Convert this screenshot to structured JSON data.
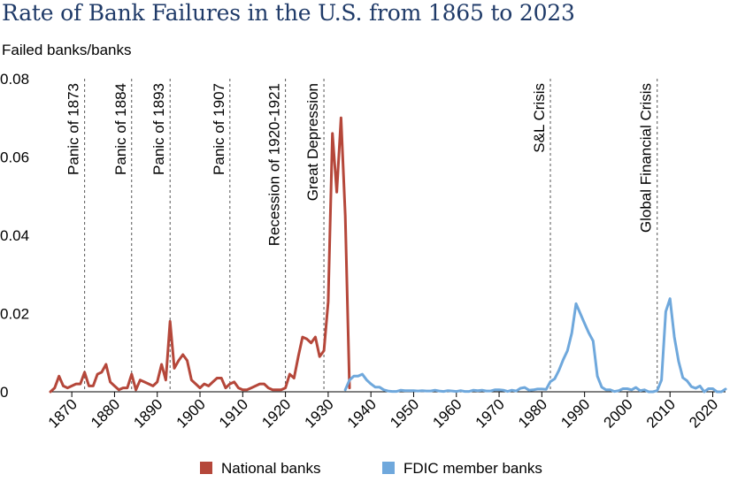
{
  "chart_data": {
    "type": "line",
    "title": "Rate of Bank Failures in the U.S. from 1865 to 2023",
    "ylabel": "Failed banks/banks",
    "xlim": [
      1865,
      2023
    ],
    "ylim": [
      0,
      0.08
    ],
    "x_ticks": [
      1870,
      1880,
      1890,
      1900,
      1910,
      1920,
      1930,
      1940,
      1950,
      1960,
      1970,
      1980,
      1990,
      2000,
      2010,
      2020
    ],
    "y_ticks": [
      0,
      0.02,
      0.04,
      0.06,
      0.08
    ],
    "y_tick_labels": [
      "0",
      "0.02",
      "0.04",
      "0.06",
      "0.08"
    ],
    "grid": false,
    "legend_position": "bottom-center",
    "events": [
      {
        "year": 1873,
        "label": "Panic of 1873"
      },
      {
        "year": 1884,
        "label": "Panic of 1884"
      },
      {
        "year": 1893,
        "label": "Panic of 1893"
      },
      {
        "year": 1907,
        "label": "Panic of 1907"
      },
      {
        "year": 1920,
        "label": "Recession of 1920-1921"
      },
      {
        "year": 1929,
        "label": "Great Depression"
      },
      {
        "year": 1982,
        "label": "S&L Crisis"
      },
      {
        "year": 2007,
        "label": "Global Financial Crisis"
      }
    ],
    "series": [
      {
        "name": "National banks",
        "color": "#b5473a",
        "points": [
          [
            1865,
            0.0
          ],
          [
            1866,
            0.001
          ],
          [
            1867,
            0.004
          ],
          [
            1868,
            0.0015
          ],
          [
            1869,
            0.001
          ],
          [
            1870,
            0.0015
          ],
          [
            1871,
            0.002
          ],
          [
            1872,
            0.002
          ],
          [
            1873,
            0.005
          ],
          [
            1874,
            0.0015
          ],
          [
            1875,
            0.0015
          ],
          [
            1876,
            0.0045
          ],
          [
            1877,
            0.005
          ],
          [
            1878,
            0.007
          ],
          [
            1879,
            0.0025
          ],
          [
            1880,
            0.0015
          ],
          [
            1881,
            0.0005
          ],
          [
            1882,
            0.001
          ],
          [
            1883,
            0.001
          ],
          [
            1884,
            0.0045
          ],
          [
            1885,
            0.0005
          ],
          [
            1886,
            0.003
          ],
          [
            1887,
            0.0025
          ],
          [
            1888,
            0.002
          ],
          [
            1889,
            0.0015
          ],
          [
            1890,
            0.0025
          ],
          [
            1891,
            0.007
          ],
          [
            1892,
            0.003
          ],
          [
            1893,
            0.018
          ],
          [
            1894,
            0.006
          ],
          [
            1895,
            0.008
          ],
          [
            1896,
            0.0095
          ],
          [
            1897,
            0.008
          ],
          [
            1898,
            0.003
          ],
          [
            1899,
            0.002
          ],
          [
            1900,
            0.001
          ],
          [
            1901,
            0.002
          ],
          [
            1902,
            0.0015
          ],
          [
            1903,
            0.0025
          ],
          [
            1904,
            0.0035
          ],
          [
            1905,
            0.0035
          ],
          [
            1906,
            0.001
          ],
          [
            1907,
            0.002
          ],
          [
            1908,
            0.0025
          ],
          [
            1909,
            0.001
          ],
          [
            1910,
            0.0005
          ],
          [
            1911,
            0.0005
          ],
          [
            1912,
            0.001
          ],
          [
            1913,
            0.0015
          ],
          [
            1914,
            0.002
          ],
          [
            1915,
            0.002
          ],
          [
            1916,
            0.001
          ],
          [
            1917,
            0.0005
          ],
          [
            1918,
            0.0005
          ],
          [
            1919,
            0.0005
          ],
          [
            1920,
            0.001
          ],
          [
            1921,
            0.0045
          ],
          [
            1922,
            0.0035
          ],
          [
            1923,
            0.009
          ],
          [
            1924,
            0.014
          ],
          [
            1925,
            0.0135
          ],
          [
            1926,
            0.0125
          ],
          [
            1927,
            0.014
          ],
          [
            1928,
            0.009
          ],
          [
            1929,
            0.0105
          ],
          [
            1930,
            0.023
          ],
          [
            1931,
            0.066
          ],
          [
            1932,
            0.051
          ],
          [
            1933,
            0.07
          ],
          [
            1934,
            0.045
          ],
          [
            1935,
            0.001
          ]
        ]
      },
      {
        "name": "FDIC member banks",
        "color": "#6fa8dc",
        "points": [
          [
            1934,
            0.0005
          ],
          [
            1935,
            0.003
          ],
          [
            1936,
            0.004
          ],
          [
            1937,
            0.004
          ],
          [
            1938,
            0.0045
          ],
          [
            1939,
            0.003
          ],
          [
            1940,
            0.002
          ],
          [
            1941,
            0.0012
          ],
          [
            1942,
            0.0012
          ],
          [
            1943,
            0.0005
          ],
          [
            1944,
            0.0002
          ],
          [
            1945,
            0.0001
          ],
          [
            1946,
            0.0001
          ],
          [
            1947,
            0.0004
          ],
          [
            1948,
            0.0003
          ],
          [
            1949,
            0.0003
          ],
          [
            1950,
            0.0003
          ],
          [
            1951,
            0.0002
          ],
          [
            1952,
            0.0003
          ],
          [
            1953,
            0.0002
          ],
          [
            1954,
            0.0002
          ],
          [
            1955,
            0.0004
          ],
          [
            1956,
            0.0002
          ],
          [
            1957,
            0.0001
          ],
          [
            1958,
            0.0003
          ],
          [
            1959,
            0.0002
          ],
          [
            1960,
            0.0001
          ],
          [
            1961,
            0.0003
          ],
          [
            1962,
            0.0001
          ],
          [
            1963,
            0.0001
          ],
          [
            1964,
            0.0004
          ],
          [
            1965,
            0.0003
          ],
          [
            1966,
            0.0004
          ],
          [
            1967,
            0.0002
          ],
          [
            1968,
            0.0002
          ],
          [
            1969,
            0.0005
          ],
          [
            1970,
            0.0005
          ],
          [
            1971,
            0.0004
          ],
          [
            1972,
            0.0001
          ],
          [
            1973,
            0.0004
          ],
          [
            1974,
            0.0002
          ],
          [
            1975,
            0.0009
          ],
          [
            1976,
            0.0011
          ],
          [
            1977,
            0.0004
          ],
          [
            1978,
            0.0005
          ],
          [
            1979,
            0.0007
          ],
          [
            1980,
            0.0007
          ],
          [
            1981,
            0.0006
          ],
          [
            1982,
            0.0026
          ],
          [
            1983,
            0.0033
          ],
          [
            1984,
            0.0055
          ],
          [
            1985,
            0.0082
          ],
          [
            1986,
            0.0105
          ],
          [
            1987,
            0.015
          ],
          [
            1988,
            0.0225
          ],
          [
            1989,
            0.02
          ],
          [
            1990,
            0.0175
          ],
          [
            1991,
            0.015
          ],
          [
            1992,
            0.013
          ],
          [
            1993,
            0.004
          ],
          [
            1994,
            0.0012
          ],
          [
            1995,
            0.0005
          ],
          [
            1996,
            0.0005
          ],
          [
            1997,
            0.0001
          ],
          [
            1998,
            0.0003
          ],
          [
            1999,
            0.0008
          ],
          [
            2000,
            0.0008
          ],
          [
            2001,
            0.0005
          ],
          [
            2002,
            0.0011
          ],
          [
            2003,
            0.0003
          ],
          [
            2004,
            0.0005
          ],
          [
            2005,
            0.0
          ],
          [
            2006,
            0.0
          ],
          [
            2007,
            0.0003
          ],
          [
            2008,
            0.003
          ],
          [
            2009,
            0.0205
          ],
          [
            2010,
            0.0238
          ],
          [
            2011,
            0.014
          ],
          [
            2012,
            0.0078
          ],
          [
            2013,
            0.0036
          ],
          [
            2014,
            0.0028
          ],
          [
            2015,
            0.0013
          ],
          [
            2016,
            0.0009
          ],
          [
            2017,
            0.0015
          ],
          [
            2018,
            0.0
          ],
          [
            2019,
            0.0008
          ],
          [
            2020,
            0.0008
          ],
          [
            2021,
            0.0
          ],
          [
            2022,
            0.0
          ],
          [
            2023,
            0.0007
          ]
        ]
      }
    ]
  }
}
